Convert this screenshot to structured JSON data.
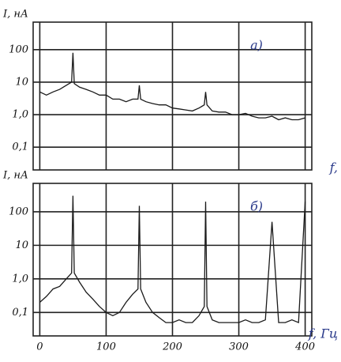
{
  "chart_data": [
    {
      "type": "line",
      "y_label": "I, нА",
      "panel_label": "а)",
      "x_label": "f,",
      "log_y": true,
      "grid": true,
      "color": "#1a1a1a",
      "x": [
        0,
        10,
        20,
        30,
        40,
        48,
        50,
        52,
        60,
        70,
        80,
        90,
        100,
        110,
        120,
        130,
        140,
        148,
        150,
        152,
        160,
        170,
        180,
        190,
        200,
        210,
        220,
        230,
        240,
        248,
        250,
        252,
        260,
        270,
        280,
        290,
        300,
        310,
        320,
        330,
        340,
        350,
        360,
        370,
        380,
        390,
        400
      ],
      "values": [
        5,
        4,
        5,
        6,
        8,
        10,
        80,
        9,
        7,
        6,
        5,
        4,
        4,
        3,
        3,
        2.5,
        3,
        3,
        8,
        3,
        2.5,
        2.2,
        2,
        2,
        1.6,
        1.5,
        1.4,
        1.3,
        1.6,
        2,
        5,
        2,
        1.3,
        1.2,
        1.2,
        1,
        1,
        1.1,
        0.9,
        0.8,
        0.8,
        0.9,
        0.7,
        0.8,
        0.7,
        0.7,
        0.8
      ],
      "xlim": [
        -10,
        410
      ],
      "ylim": [
        0.02,
        700
      ],
      "yticks": [
        100,
        10,
        {
          "value": 1,
          "label": "1,0"
        },
        {
          "value": 0.1,
          "label": "0,1"
        }
      ]
    },
    {
      "type": "line",
      "y_label": "I, нА",
      "panel_label": "б)",
      "x_label": "f, Гц",
      "log_y": true,
      "grid": true,
      "color": "#1a1a1a",
      "x": [
        0,
        10,
        20,
        30,
        40,
        48,
        50,
        52,
        60,
        70,
        80,
        90,
        100,
        110,
        120,
        130,
        140,
        148,
        150,
        152,
        160,
        170,
        180,
        190,
        200,
        210,
        220,
        230,
        240,
        248,
        250,
        252,
        260,
        270,
        280,
        290,
        300,
        310,
        320,
        330,
        340,
        350,
        360,
        370,
        380,
        390,
        400
      ],
      "values": [
        0.2,
        0.3,
        0.5,
        0.6,
        1,
        1.5,
        300,
        1.5,
        0.8,
        0.4,
        0.25,
        0.15,
        0.1,
        0.08,
        0.1,
        0.2,
        0.35,
        0.5,
        150,
        0.5,
        0.2,
        0.1,
        0.07,
        0.05,
        0.05,
        0.06,
        0.05,
        0.05,
        0.08,
        0.15,
        200,
        0.15,
        0.06,
        0.05,
        0.05,
        0.05,
        0.05,
        0.06,
        0.05,
        0.05,
        0.06,
        50,
        0.05,
        0.05,
        0.06,
        0.05,
        200
      ],
      "xlim": [
        -10,
        410
      ],
      "ylim": [
        0.02,
        700
      ],
      "xticks": [
        0,
        100,
        200,
        300,
        400
      ],
      "yticks": [
        100,
        10,
        {
          "value": 1,
          "label": "1,0"
        },
        {
          "value": 0.1,
          "label": "0,1"
        }
      ]
    }
  ]
}
